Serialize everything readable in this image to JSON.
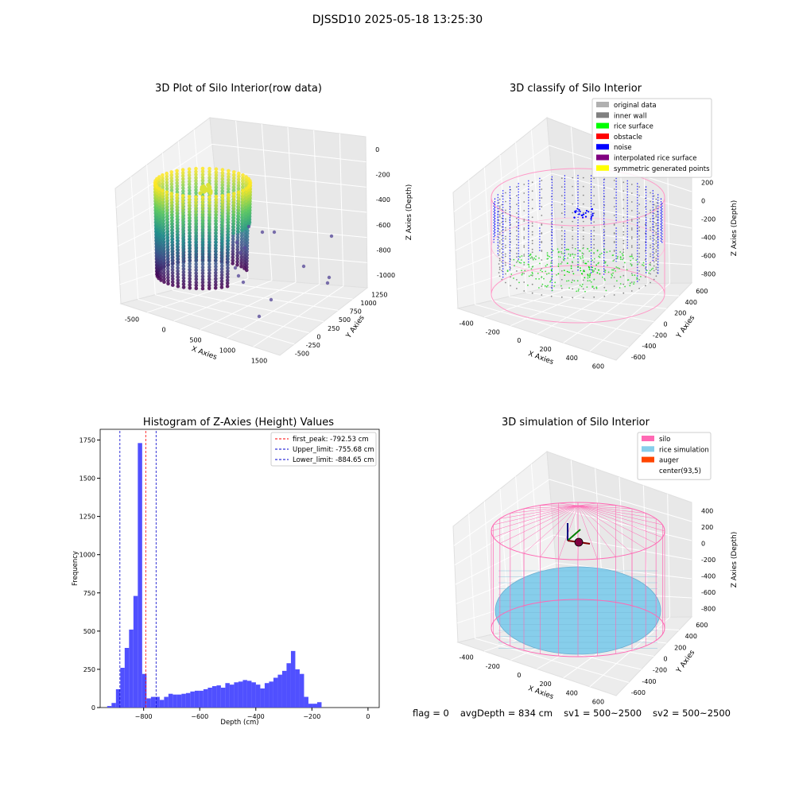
{
  "figure": {
    "title": "DJSSD10 2025-05-18 13:25:30"
  },
  "status_bar": {
    "flag": "flag = 0",
    "avg_depth": "avgDepth = 834 cm",
    "sv1": "sv1 = 500~2500",
    "sv2": "sv2 = 500~2500"
  },
  "colors": {
    "histogram_bar": "#5050ff",
    "first_peak_line": "#ff0000",
    "limit_lines": "#0000cc",
    "silo_wire": "#ff69b4",
    "rice_simulation": "#87ceeb",
    "auger": "#ff4500",
    "rice_surface": "#00ff00",
    "noise": "#0000ff",
    "inner_wall": "#808080",
    "original_data": "#b0b0b0",
    "obstacle": "#ff0000",
    "interpolated": "#800080",
    "symmetric": "#ffff00"
  },
  "chart_data": [
    {
      "type": "scatter",
      "panel": "raw",
      "title": "3D Plot of Silo Interior(row data)",
      "xlabel": "X Axies",
      "ylabel": "Y Axies",
      "zlabel": "Z Axies (Depth)",
      "x_ticks": [
        "-500",
        "0",
        "500",
        "1000",
        "1500"
      ],
      "y_ticks": [
        "-500",
        "-250",
        "0",
        "250",
        "500",
        "750",
        "1000",
        "1250"
      ],
      "z_ticks": [
        "0",
        "-200",
        "-400",
        "-600",
        "-800",
        "-1000"
      ],
      "colormap": "viridis"
    },
    {
      "type": "scatter",
      "panel": "classify",
      "title": "3D classify of Silo Interior",
      "xlabel": "X Axies",
      "ylabel": "Y Axies",
      "zlabel": "Z Axies (Depth)",
      "x_ticks": [
        "-400",
        "-200",
        "0",
        "200",
        "400",
        "600"
      ],
      "y_ticks": [
        "-600",
        "-400",
        "-200",
        "0",
        "200",
        "400",
        "600"
      ],
      "z_ticks": [
        "200",
        "0",
        "-200",
        "-400",
        "-600",
        "-800"
      ],
      "legend": [
        {
          "label": "original data",
          "color": "#b0b0b0"
        },
        {
          "label": "inner wall",
          "color": "#808080"
        },
        {
          "label": "rice surface",
          "color": "#00ff00"
        },
        {
          "label": "obstacle",
          "color": "#ff0000"
        },
        {
          "label": "noise",
          "color": "#0000ff"
        },
        {
          "label": "interpolated rice surface",
          "color": "#800080"
        },
        {
          "label": "symmetric generated points",
          "color": "#ffff00"
        }
      ],
      "legend_position": "top-right"
    },
    {
      "type": "bar",
      "panel": "histogram",
      "title": "Histogram of Z-Axies (Height) Values",
      "xlabel": "Depth (cm)",
      "ylabel": "Frequency",
      "xlim": [
        -955,
        40
      ],
      "ylim": [
        0,
        1820
      ],
      "x_ticks": [
        -800,
        -600,
        -400,
        -200,
        0
      ],
      "y_ticks": [
        0,
        250,
        500,
        750,
        1000,
        1250,
        1500,
        1750
      ],
      "bin_width": 15.6,
      "bins_start": -930,
      "values": [
        10,
        30,
        120,
        260,
        390,
        510,
        730,
        1730,
        220,
        60,
        70,
        70,
        50,
        70,
        90,
        85,
        85,
        90,
        95,
        105,
        110,
        110,
        120,
        130,
        140,
        145,
        130,
        160,
        150,
        165,
        170,
        180,
        175,
        165,
        150,
        125,
        160,
        170,
        195,
        215,
        240,
        290,
        370,
        250,
        220,
        70,
        25,
        25,
        35
      ],
      "vlines": [
        {
          "x": -792.53,
          "label": "first_peak: -792.53 cm",
          "style": "first_peak"
        },
        {
          "x": -755.68,
          "label": "Upper_limit: -755.68 cm",
          "style": "limit"
        },
        {
          "x": -884.65,
          "label": "Lower_limit: -884.65 cm",
          "style": "limit"
        }
      ],
      "legend_position": "top-right"
    },
    {
      "type": "scatter",
      "panel": "simulation",
      "title": "3D simulation of Silo Interior",
      "xlabel": "X Axies",
      "ylabel": "Y Axies",
      "zlabel": "Z Axies (Depth)",
      "x_ticks": [
        "-400",
        "-200",
        "0",
        "200",
        "400",
        "600"
      ],
      "y_ticks": [
        "-600",
        "-400",
        "-200",
        "0",
        "200",
        "400",
        "600"
      ],
      "z_ticks": [
        "400",
        "200",
        "0",
        "-200",
        "-400",
        "-600",
        "-800"
      ],
      "legend": [
        {
          "label": "silo",
          "color": "#ff69b4"
        },
        {
          "label": "rice simulation",
          "color": "#87ceeb"
        },
        {
          "label": "auger",
          "color": "#ff4500"
        },
        {
          "label": "center(93,5)",
          "color": "#ffffff"
        }
      ],
      "legend_position": "top-right"
    }
  ]
}
